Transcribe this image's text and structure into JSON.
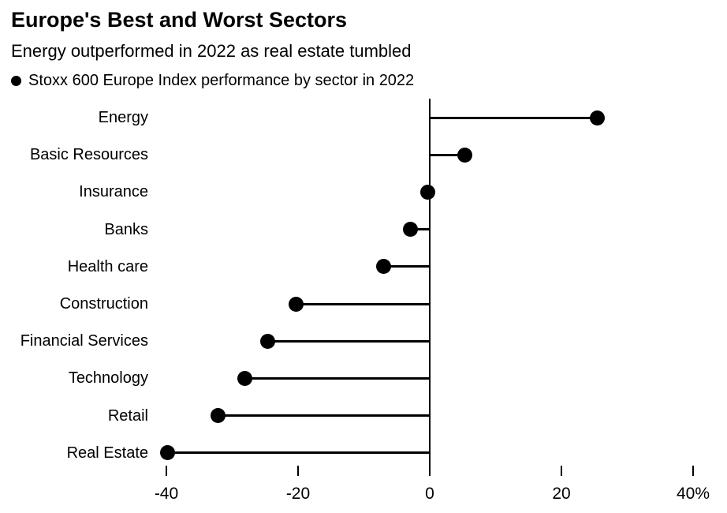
{
  "header": {
    "title": "Europe's Best and Worst Sectors",
    "subtitle": "Energy outperformed in 2022 as real estate tumbled"
  },
  "legend": {
    "marker_icon": "filled-circle",
    "label": "Stoxx 600 Europe Index performance by sector in 2022"
  },
  "colors": {
    "ink": "#000000",
    "background": "#ffffff"
  },
  "chart_data": {
    "type": "bar",
    "variant": "horizontal-lollipop",
    "title": "Europe's Best and Worst Sectors",
    "subtitle": "Energy outperformed in 2022 as real estate tumbled",
    "series_label": "Stoxx 600 Europe Index performance by sector in 2022",
    "unit": "%",
    "categories": [
      "Energy",
      "Basic Resources",
      "Insurance",
      "Banks",
      "Health care",
      "Construction",
      "Financial Services",
      "Technology",
      "Retail",
      "Real Estate"
    ],
    "values": [
      25.5,
      5.3,
      -0.3,
      -2.9,
      -7.0,
      -20.3,
      -24.6,
      -28.1,
      -32.1,
      -39.8
    ],
    "xlabel": "",
    "ylabel": "",
    "xlim": [
      -40,
      40
    ],
    "x_ticks": [
      {
        "value": -40,
        "label": "-40"
      },
      {
        "value": -20,
        "label": "-20"
      },
      {
        "value": 0,
        "label": "0"
      },
      {
        "value": 20,
        "label": "20"
      },
      {
        "value": 40,
        "label": "40%"
      }
    ],
    "grid": false,
    "legend_position": "top-left"
  }
}
